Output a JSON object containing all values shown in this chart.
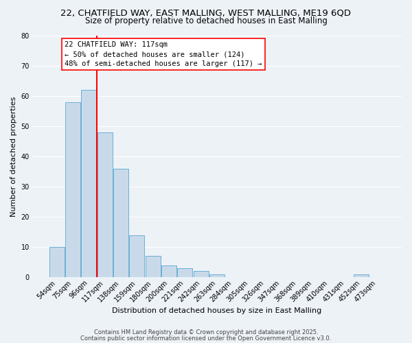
{
  "title": "22, CHATFIELD WAY, EAST MALLING, WEST MALLING, ME19 6QD",
  "subtitle": "Size of property relative to detached houses in East Malling",
  "xlabel": "Distribution of detached houses by size in East Malling",
  "ylabel": "Number of detached properties",
  "bar_color": "#c8daea",
  "bar_edge_color": "#6aafd4",
  "background_color": "#edf2f7",
  "grid_color": "white",
  "categories": [
    "54sqm",
    "75sqm",
    "96sqm",
    "117sqm",
    "138sqm",
    "159sqm",
    "180sqm",
    "200sqm",
    "221sqm",
    "242sqm",
    "263sqm",
    "284sqm",
    "305sqm",
    "326sqm",
    "347sqm",
    "368sqm",
    "389sqm",
    "410sqm",
    "431sqm",
    "452sqm",
    "473sqm"
  ],
  "bar_heights": [
    10,
    58,
    62,
    48,
    36,
    14,
    7,
    4,
    3,
    2,
    1,
    0,
    0,
    0,
    0,
    0,
    0,
    0,
    0,
    1,
    0
  ],
  "ylim": [
    0,
    80
  ],
  "yticks": [
    0,
    10,
    20,
    30,
    40,
    50,
    60,
    70,
    80
  ],
  "red_line_index": 3,
  "annotation_line1": "22 CHATFIELD WAY: 117sqm",
  "annotation_line2": "← 50% of detached houses are smaller (124)",
  "annotation_line3": "48% of semi-detached houses are larger (117) →",
  "footer_line1": "Contains HM Land Registry data © Crown copyright and database right 2025.",
  "footer_line2": "Contains public sector information licensed under the Open Government Licence v3.0.",
  "title_fontsize": 9.5,
  "subtitle_fontsize": 8.5,
  "axis_label_fontsize": 8,
  "tick_fontsize": 7,
  "annotation_fontsize": 7.5,
  "footer_fontsize": 6
}
